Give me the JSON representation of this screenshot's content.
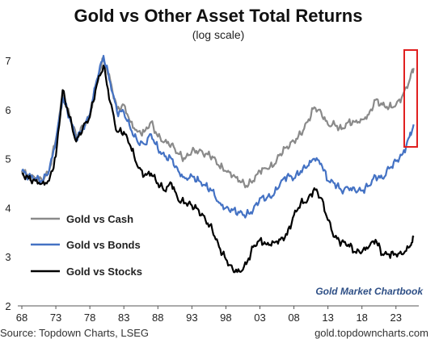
{
  "chart_data": {
    "type": "line",
    "title": "Gold vs Other Asset Total Returns",
    "subtitle": "(log scale)",
    "xlabel": "",
    "ylabel": "",
    "x_ticks": [
      "68",
      "73",
      "78",
      "83",
      "88",
      "93",
      "98",
      "03",
      "08",
      "13",
      "18",
      "23"
    ],
    "y_ticks": [
      2,
      3,
      4,
      5,
      6,
      7
    ],
    "xlim": [
      1968,
      2026
    ],
    "ylim": [
      2,
      7.2
    ],
    "grid": false,
    "legend_position": "bottom-left",
    "series": [
      {
        "name": "Gold vs Cash",
        "color": "#8a8a8a",
        "points": [
          [
            1968,
            4.75
          ],
          [
            1969,
            4.65
          ],
          [
            1970,
            4.6
          ],
          [
            1971,
            4.55
          ],
          [
            1972,
            4.75
          ],
          [
            1973,
            5.4
          ],
          [
            1974,
            6.3
          ],
          [
            1975,
            5.9
          ],
          [
            1976,
            5.45
          ],
          [
            1977,
            5.65
          ],
          [
            1978,
            5.9
          ],
          [
            1979,
            6.6
          ],
          [
            1980,
            7.05
          ],
          [
            1981,
            6.6
          ],
          [
            1982,
            6.0
          ],
          [
            1983,
            6.1
          ],
          [
            1984,
            5.75
          ],
          [
            1985,
            5.55
          ],
          [
            1986,
            5.55
          ],
          [
            1987,
            5.75
          ],
          [
            1988,
            5.45
          ],
          [
            1989,
            5.35
          ],
          [
            1990,
            5.3
          ],
          [
            1991,
            5.1
          ],
          [
            1992,
            5.0
          ],
          [
            1993,
            5.15
          ],
          [
            1994,
            5.15
          ],
          [
            1995,
            5.1
          ],
          [
            1996,
            5.05
          ],
          [
            1997,
            4.85
          ],
          [
            1998,
            4.75
          ],
          [
            1999,
            4.65
          ],
          [
            2000,
            4.55
          ],
          [
            2001,
            4.45
          ],
          [
            2002,
            4.55
          ],
          [
            2003,
            4.75
          ],
          [
            2004,
            4.8
          ],
          [
            2005,
            4.85
          ],
          [
            2006,
            5.1
          ],
          [
            2007,
            5.25
          ],
          [
            2008,
            5.35
          ],
          [
            2009,
            5.5
          ],
          [
            2010,
            5.75
          ],
          [
            2011,
            6.05
          ],
          [
            2012,
            5.95
          ],
          [
            2013,
            5.7
          ],
          [
            2014,
            5.7
          ],
          [
            2015,
            5.6
          ],
          [
            2016,
            5.75
          ],
          [
            2017,
            5.75
          ],
          [
            2018,
            5.8
          ],
          [
            2019,
            5.9
          ],
          [
            2020,
            6.2
          ],
          [
            2021,
            6.1
          ],
          [
            2022,
            6.05
          ],
          [
            2023,
            6.1
          ],
          [
            2024,
            6.3
          ],
          [
            2025,
            6.6
          ],
          [
            2025.6,
            6.85
          ]
        ]
      },
      {
        "name": "Gold vs Bonds",
        "color": "#4472c4",
        "points": [
          [
            1968,
            4.75
          ],
          [
            1969,
            4.65
          ],
          [
            1970,
            4.6
          ],
          [
            1971,
            4.55
          ],
          [
            1972,
            4.75
          ],
          [
            1973,
            5.35
          ],
          [
            1974,
            6.25
          ],
          [
            1975,
            5.85
          ],
          [
            1976,
            5.4
          ],
          [
            1977,
            5.6
          ],
          [
            1978,
            5.9
          ],
          [
            1979,
            6.6
          ],
          [
            1980,
            7.1
          ],
          [
            1981,
            6.55
          ],
          [
            1982,
            5.95
          ],
          [
            1983,
            5.95
          ],
          [
            1984,
            5.6
          ],
          [
            1985,
            5.35
          ],
          [
            1986,
            5.3
          ],
          [
            1987,
            5.5
          ],
          [
            1988,
            5.2
          ],
          [
            1989,
            5.05
          ],
          [
            1990,
            5.0
          ],
          [
            1991,
            4.75
          ],
          [
            1992,
            4.6
          ],
          [
            1993,
            4.65
          ],
          [
            1994,
            4.55
          ],
          [
            1995,
            4.45
          ],
          [
            1996,
            4.35
          ],
          [
            1997,
            4.1
          ],
          [
            1998,
            4.0
          ],
          [
            1999,
            3.95
          ],
          [
            2000,
            3.9
          ],
          [
            2001,
            3.85
          ],
          [
            2002,
            3.95
          ],
          [
            2003,
            4.2
          ],
          [
            2004,
            4.2
          ],
          [
            2005,
            4.25
          ],
          [
            2006,
            4.5
          ],
          [
            2007,
            4.65
          ],
          [
            2008,
            4.6
          ],
          [
            2009,
            4.75
          ],
          [
            2010,
            4.85
          ],
          [
            2011,
            5.0
          ],
          [
            2012,
            4.9
          ],
          [
            2013,
            4.55
          ],
          [
            2014,
            4.5
          ],
          [
            2015,
            4.35
          ],
          [
            2016,
            4.4
          ],
          [
            2017,
            4.35
          ],
          [
            2018,
            4.35
          ],
          [
            2019,
            4.45
          ],
          [
            2020,
            4.65
          ],
          [
            2021,
            4.6
          ],
          [
            2022,
            4.8
          ],
          [
            2023,
            4.95
          ],
          [
            2024,
            5.1
          ],
          [
            2025,
            5.45
          ],
          [
            2025.6,
            5.7
          ]
        ]
      },
      {
        "name": "Gold vs Stocks",
        "color": "#000000",
        "points": [
          [
            1968,
            4.7
          ],
          [
            1969,
            4.6
          ],
          [
            1970,
            4.55
          ],
          [
            1971,
            4.5
          ],
          [
            1972,
            4.55
          ],
          [
            1973,
            5.05
          ],
          [
            1974,
            6.4
          ],
          [
            1975,
            5.85
          ],
          [
            1976,
            5.35
          ],
          [
            1977,
            5.65
          ],
          [
            1978,
            5.85
          ],
          [
            1979,
            6.5
          ],
          [
            1980,
            6.9
          ],
          [
            1981,
            6.15
          ],
          [
            1982,
            5.55
          ],
          [
            1983,
            5.55
          ],
          [
            1984,
            5.25
          ],
          [
            1985,
            4.85
          ],
          [
            1986,
            4.65
          ],
          [
            1987,
            4.7
          ],
          [
            1988,
            4.5
          ],
          [
            1989,
            4.35
          ],
          [
            1990,
            4.5
          ],
          [
            1991,
            4.15
          ],
          [
            1992,
            4.1
          ],
          [
            1993,
            4.05
          ],
          [
            1994,
            3.95
          ],
          [
            1995,
            3.75
          ],
          [
            1996,
            3.55
          ],
          [
            1997,
            3.2
          ],
          [
            1998,
            2.95
          ],
          [
            1999,
            2.75
          ],
          [
            2000,
            2.7
          ],
          [
            2001,
            2.85
          ],
          [
            2002,
            3.2
          ],
          [
            2003,
            3.35
          ],
          [
            2004,
            3.25
          ],
          [
            2005,
            3.3
          ],
          [
            2006,
            3.35
          ],
          [
            2007,
            3.45
          ],
          [
            2008,
            3.85
          ],
          [
            2009,
            4.1
          ],
          [
            2010,
            4.15
          ],
          [
            2011,
            4.4
          ],
          [
            2012,
            4.2
          ],
          [
            2013,
            3.75
          ],
          [
            2014,
            3.4
          ],
          [
            2015,
            3.3
          ],
          [
            2016,
            3.25
          ],
          [
            2017,
            3.1
          ],
          [
            2018,
            3.1
          ],
          [
            2019,
            3.2
          ],
          [
            2020,
            3.35
          ],
          [
            2021,
            3.05
          ],
          [
            2022,
            3.05
          ],
          [
            2023,
            3.05
          ],
          [
            2024,
            3.05
          ],
          [
            2025,
            3.2
          ],
          [
            2025.6,
            3.4
          ]
        ]
      }
    ]
  },
  "legend": [
    {
      "label": "Gold vs Cash",
      "color": "#8a8a8a"
    },
    {
      "label": "Gold vs Bonds",
      "color": "#4472c4"
    },
    {
      "label": "Gold vs Stocks",
      "color": "#000000"
    }
  ],
  "brand_text": "Gold Market Chartbook",
  "source_text": "Source: Topdown Charts, LSEG",
  "website_text": "gold.topdowncharts.com",
  "highlight_color": "#e02020"
}
